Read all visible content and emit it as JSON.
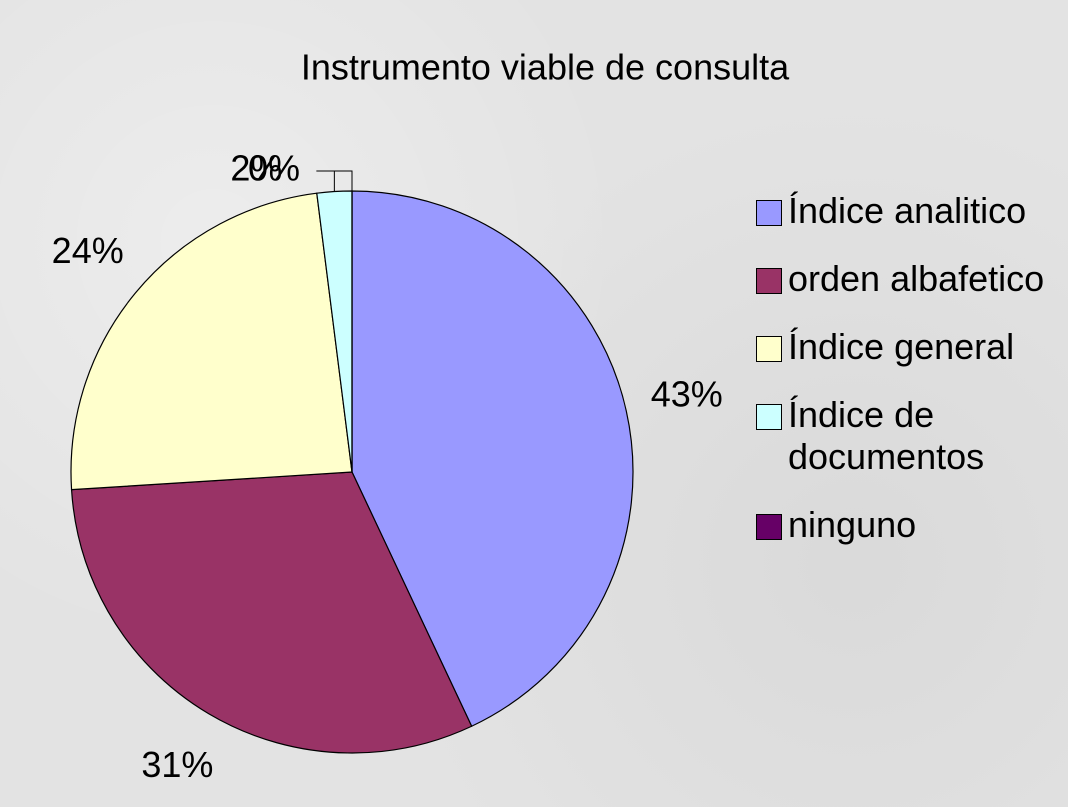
{
  "chart_data": {
    "type": "pie",
    "title": "Instrumento viable de  consulta",
    "categories": [
      "Índice analitico",
      "orden albafetico",
      "Índice general",
      "Índice de documentos",
      "ninguno"
    ],
    "values": [
      43,
      31,
      24,
      2,
      0
    ],
    "value_labels": [
      "43%",
      "31%",
      "24%",
      "2%",
      "0%"
    ],
    "colors": [
      "#9999ff",
      "#993366",
      "#ffffcc",
      "#ccffff",
      "#660066"
    ],
    "legend": "right"
  }
}
